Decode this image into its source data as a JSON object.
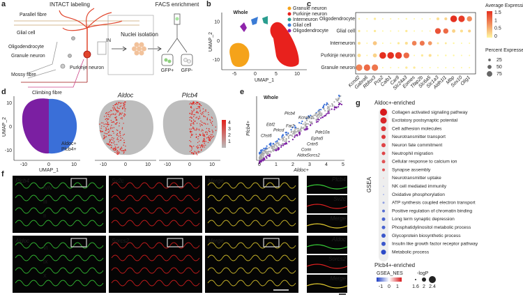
{
  "a": {
    "label": "a",
    "title_left": "INTACT labeling",
    "title_right": "FACS enrichment",
    "cells": [
      "Parallel fibre",
      "Glial cell",
      "Oligodendrocyte",
      "Granule neuron",
      "Mossy fibre",
      "Climbing fibre",
      "Purkinje neuron",
      "IN"
    ],
    "step": "Nuclei isolation",
    "gfp_pos": "GFP+",
    "gfp_neg": "GFP-"
  },
  "b": {
    "label": "b",
    "title": "Whole",
    "x_label": "UMAP_1",
    "y_label": "UMAP_2",
    "xticks": [
      -5,
      0,
      5,
      10
    ],
    "yticks": [
      -10,
      0,
      10
    ],
    "legend": [
      {
        "name": "Granule neuron",
        "color": "#f5a31a"
      },
      {
        "name": "Purkinje neuron",
        "color": "#e8211d"
      },
      {
        "name": "Interneuron",
        "color": "#2a9d8f"
      },
      {
        "name": "Glial cell",
        "color": "#3a7bd5"
      },
      {
        "name": "Oligodendrocyte",
        "color": "#8e24aa"
      }
    ]
  },
  "c": {
    "label": "c",
    "rows": [
      "Oligodendrocyte",
      "Glial cell",
      "Interneuron",
      "Purkinje neuron",
      "Granule neuron"
    ],
    "genes": [
      "Kcnd2",
      "Gabra6",
      "Rbfox3",
      "Pcp2",
      "Calb1",
      "Car8",
      "Slc24a3",
      "Eomes",
      "Tfap2b",
      "Slc6a5",
      "Slc1a3",
      "Aldh1l1",
      "Mbp",
      "Sox10",
      "Olig1"
    ],
    "avg": [
      [
        0,
        0,
        0.1,
        0,
        0,
        0,
        0,
        0,
        0,
        0,
        0.2,
        0.3,
        1.8,
        1.6,
        0.9
      ],
      [
        0.1,
        0,
        0.1,
        0,
        0,
        0,
        0.1,
        0,
        0,
        0,
        1.4,
        1.2,
        0.3,
        0.2,
        0.3
      ],
      [
        0.2,
        0,
        0.4,
        0,
        0,
        0.1,
        0.2,
        1.0,
        1.1,
        0.8,
        0.1,
        0.1,
        0,
        0,
        0
      ],
      [
        0.2,
        0,
        0.3,
        1.7,
        1.7,
        1.6,
        1.2,
        0,
        0.1,
        0.2,
        0,
        0,
        0,
        0,
        0
      ],
      [
        1.0,
        1.2,
        1.1,
        0,
        0,
        0,
        0.1,
        0.1,
        0,
        0,
        0,
        0,
        0,
        0,
        0
      ]
    ],
    "pct": [
      [
        10,
        5,
        20,
        5,
        5,
        5,
        10,
        5,
        5,
        5,
        30,
        30,
        95,
        90,
        70
      ],
      [
        20,
        5,
        20,
        5,
        5,
        5,
        20,
        5,
        5,
        5,
        80,
        70,
        40,
        30,
        30
      ],
      [
        30,
        5,
        50,
        5,
        5,
        20,
        30,
        60,
        65,
        50,
        15,
        15,
        10,
        5,
        5
      ],
      [
        40,
        5,
        50,
        95,
        95,
        95,
        80,
        5,
        20,
        30,
        10,
        10,
        10,
        5,
        5
      ],
      [
        90,
        90,
        90,
        5,
        5,
        5,
        20,
        20,
        5,
        5,
        5,
        5,
        5,
        5,
        5
      ]
    ],
    "color_title": "Average Expression",
    "color_ticks": [
      1.5,
      1.0,
      0.5,
      0.0
    ],
    "size_title": "Percent Expressed",
    "size_ticks": [
      25,
      50,
      75
    ]
  },
  "d": {
    "label": "d",
    "x_label": "UMAP_1",
    "y_label": "UMAP_2",
    "xticks": [
      -10,
      0,
      10
    ],
    "yticks": [
      -10,
      0,
      10
    ],
    "legend": [
      {
        "name": "Aldoc+",
        "color": "#7b1fa2"
      },
      {
        "name": "Plcb4+",
        "color": "#3a6fd8"
      }
    ],
    "titles": [
      "Aldoc",
      "Plcb4"
    ],
    "color_ticks": [
      4,
      3,
      2,
      1
    ]
  },
  "e": {
    "label": "e",
    "title": "Whole",
    "x_label": "Aldoc+",
    "y_label": "Plcb4+",
    "xticks": [
      0,
      1,
      2,
      3,
      4,
      5
    ],
    "genes": [
      "Plcb4",
      "Kcnab1",
      "Ebf2",
      "Far2",
      "Prkcd",
      "Chst6",
      "Pde10a",
      "Epha5",
      "Cntn5",
      "Corin",
      "Aldoc",
      "Sorcs2"
    ]
  },
  "f": {
    "label": "f",
    "top": [
      "Plcb4",
      "Sv2c",
      "Merge"
    ],
    "bottom": [
      "Aldoc",
      "Sorcs2",
      "Merge"
    ],
    "lobules_top": [
      "IV/V",
      "III",
      "II"
    ],
    "lobules_bottom": [
      "VI",
      "IX",
      "X"
    ]
  },
  "g": {
    "label": "g",
    "top_label": "Aldoc+-enriched",
    "bottom_label": "Plcb4+-enriched",
    "axis_label": "GSEA",
    "pathways": [
      "Collagen activated signaling pathway",
      "Excitatory postsynaptic potential",
      "Cell adhesion molecules",
      "Neurotransmitter transport",
      "Neuron fate commitment",
      "Neutrophil migration",
      "Cellular response to calcium ion",
      "Synapse assembly",
      "Neurotransmitter uptake",
      "NK cell mediated immunity",
      "Oxidative phosphorylation",
      "ATP synthesis coupled electron transport",
      "Positive regulation of chromatin binding",
      "Long term synaptic depression",
      "Phosphatidylinositol metabolic process",
      "Glycoprotein biosynthetic process",
      "Insulin like growth factor receptor pathway",
      "Metabolic process"
    ],
    "nes": [
      1.6,
      1.5,
      1.4,
      1.4,
      1.3,
      1.3,
      1.2,
      1.2,
      0.4,
      -0.5,
      -0.6,
      -0.8,
      -1.2,
      -1.3,
      -1.3,
      -1.4,
      -1.4,
      -1.5
    ],
    "logp": [
      2.4,
      2.3,
      2.1,
      2.0,
      2.0,
      1.9,
      1.9,
      1.8,
      1.6,
      1.6,
      1.6,
      1.7,
      1.8,
      1.9,
      1.9,
      2.0,
      2.0,
      2.1
    ],
    "nes_title": "GSEA_NES",
    "nes_ticks": [
      -1,
      0,
      1
    ],
    "logp_title": "-logP",
    "logp_ticks": [
      1.6,
      2.0,
      2.4
    ]
  }
}
